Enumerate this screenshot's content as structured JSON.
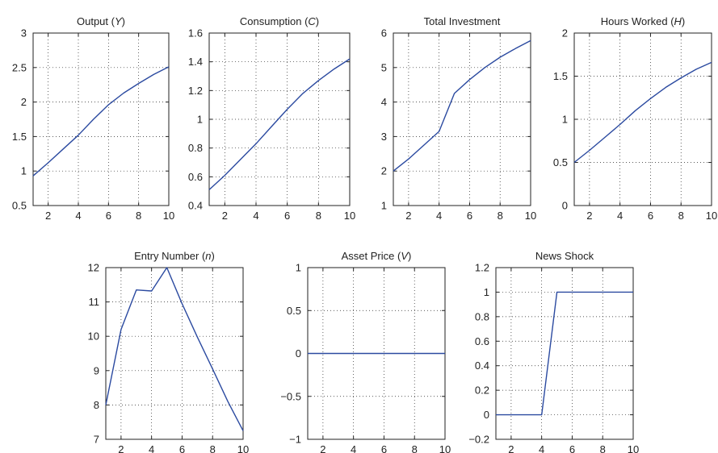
{
  "series_color": "#2b4aa0",
  "chart_data": [
    {
      "type": "line",
      "title": "Output (Y)",
      "title_main": "Output (",
      "title_var": "Y",
      "title_end": ")",
      "x": [
        1,
        2,
        3,
        4,
        5,
        6,
        7,
        8,
        9,
        10
      ],
      "y": [
        0.93,
        1.12,
        1.32,
        1.52,
        1.75,
        1.96,
        2.13,
        2.27,
        2.4,
        2.51
      ],
      "xlim": [
        1,
        10
      ],
      "ylim": [
        0.5,
        3
      ],
      "xticks": [
        2,
        4,
        6,
        8,
        10
      ],
      "yticks": [
        0.5,
        1,
        1.5,
        2,
        2.5,
        3
      ],
      "ytick_labels": [
        "0.5",
        "1",
        "1.5",
        "2",
        "2.5",
        "3"
      ],
      "grid": true
    },
    {
      "type": "line",
      "title": "Consumption (C)",
      "title_main": "Consumption (",
      "title_var": "C",
      "title_end": ")",
      "x": [
        1,
        2,
        3,
        4,
        5,
        6,
        7,
        8,
        9,
        10
      ],
      "y": [
        0.51,
        0.61,
        0.72,
        0.83,
        0.95,
        1.07,
        1.18,
        1.27,
        1.35,
        1.42
      ],
      "xlim": [
        1,
        10
      ],
      "ylim": [
        0.4,
        1.6
      ],
      "xticks": [
        2,
        4,
        6,
        8,
        10
      ],
      "yticks": [
        0.4,
        0.6,
        0.8,
        1,
        1.2,
        1.4,
        1.6
      ],
      "ytick_labels": [
        "0.4",
        "0.6",
        "0.8",
        "1",
        "1.2",
        "1.4",
        "1.6"
      ],
      "grid": true
    },
    {
      "type": "line",
      "title": "Total Investment",
      "title_main": "Total Investment",
      "title_var": "",
      "title_end": "",
      "x": [
        1,
        2,
        3,
        4,
        5,
        6,
        7,
        8,
        9,
        10
      ],
      "y": [
        2.0,
        2.35,
        2.75,
        3.15,
        4.25,
        4.65,
        5.0,
        5.3,
        5.55,
        5.78
      ],
      "xlim": [
        1,
        10
      ],
      "ylim": [
        1,
        6
      ],
      "xticks": [
        2,
        4,
        6,
        8,
        10
      ],
      "yticks": [
        1,
        2,
        3,
        4,
        5,
        6
      ],
      "ytick_labels": [
        "1",
        "2",
        "3",
        "4",
        "5",
        "6"
      ],
      "grid": true
    },
    {
      "type": "line",
      "title": "Hours Worked (H)",
      "title_main": "Hours Worked (",
      "title_var": "H",
      "title_end": ")",
      "x": [
        1,
        2,
        3,
        4,
        5,
        6,
        7,
        8,
        9,
        10
      ],
      "y": [
        0.5,
        0.64,
        0.79,
        0.94,
        1.1,
        1.24,
        1.37,
        1.48,
        1.58,
        1.66
      ],
      "xlim": [
        1,
        10
      ],
      "ylim": [
        0,
        2
      ],
      "xticks": [
        2,
        4,
        6,
        8,
        10
      ],
      "yticks": [
        0,
        0.5,
        1,
        1.5,
        2
      ],
      "ytick_labels": [
        "0",
        "0.5",
        "1",
        "1.5",
        "2"
      ],
      "grid": true
    },
    {
      "type": "line",
      "title": "Entry Number (n)",
      "title_main": "Entry Number (",
      "title_var": "n",
      "title_end": ")",
      "x": [
        1,
        2,
        3,
        4,
        5,
        6,
        7,
        8,
        9,
        10
      ],
      "y": [
        8.0,
        10.2,
        11.35,
        11.32,
        12.0,
        10.95,
        9.98,
        9.05,
        8.1,
        7.25
      ],
      "xlim": [
        1,
        10
      ],
      "ylim": [
        7,
        12
      ],
      "xticks": [
        2,
        4,
        6,
        8,
        10
      ],
      "yticks": [
        7,
        8,
        9,
        10,
        11,
        12
      ],
      "ytick_labels": [
        "7",
        "8",
        "9",
        "10",
        "11",
        "12"
      ],
      "grid": true
    },
    {
      "type": "line",
      "title": "Asset Price (V)",
      "title_main": "Asset Price (",
      "title_var": "V",
      "title_end": ")",
      "x": [
        1,
        2,
        3,
        4,
        5,
        6,
        7,
        8,
        9,
        10
      ],
      "y": [
        0,
        0,
        0,
        0,
        0,
        0,
        0,
        0,
        0,
        0
      ],
      "xlim": [
        1,
        10
      ],
      "ylim": [
        -1,
        1
      ],
      "xticks": [
        2,
        4,
        6,
        8,
        10
      ],
      "yticks": [
        -1,
        -0.5,
        0,
        0.5,
        1
      ],
      "ytick_labels": [
        "−1",
        "−0.5",
        "0",
        "0.5",
        "1"
      ],
      "grid": true
    },
    {
      "type": "line",
      "title": "News Shock",
      "title_main": "News Shock",
      "title_var": "",
      "title_end": "",
      "x": [
        1,
        2,
        3,
        4,
        5,
        6,
        7,
        8,
        9,
        10
      ],
      "y": [
        0,
        0,
        0,
        0,
        1,
        1,
        1,
        1,
        1,
        1
      ],
      "xlim": [
        1,
        10
      ],
      "ylim": [
        -0.2,
        1.2
      ],
      "xticks": [
        2,
        4,
        6,
        8,
        10
      ],
      "yticks": [
        -0.2,
        0,
        0.2,
        0.4,
        0.6,
        0.8,
        1,
        1.2
      ],
      "ytick_labels": [
        "−0.2",
        "0",
        "0.2",
        "0.4",
        "0.6",
        "0.8",
        "1",
        "1.2"
      ],
      "grid": true
    }
  ]
}
